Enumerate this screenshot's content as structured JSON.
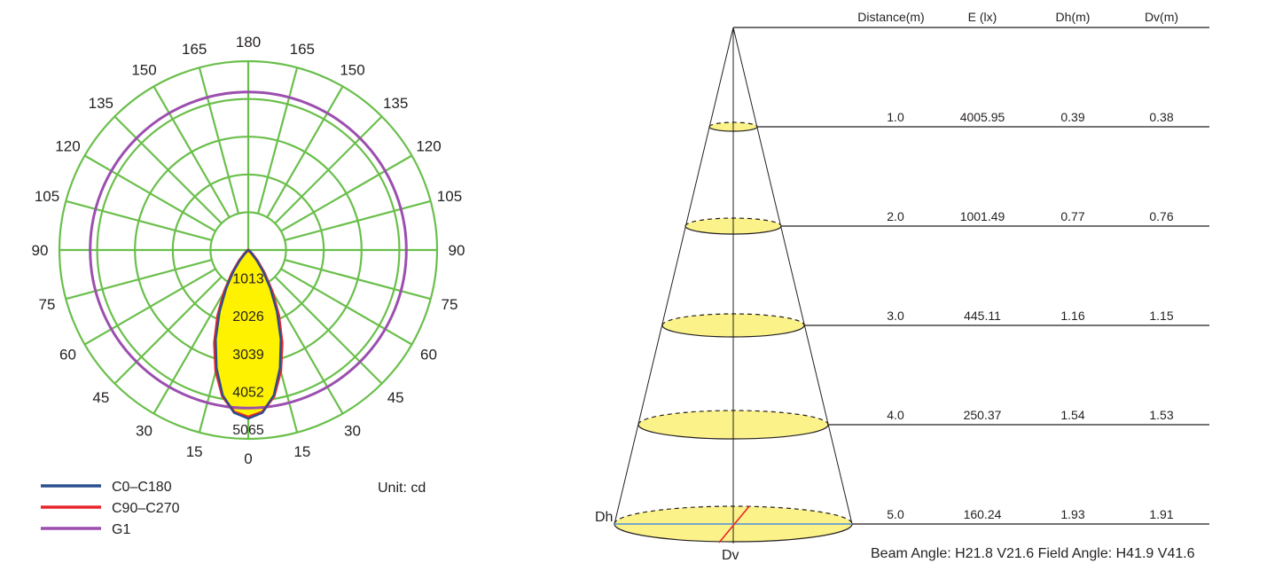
{
  "chart_data": [
    {
      "type": "polar",
      "unit_label": "Unit: cd",
      "angle_labels": [
        "180",
        "165",
        "150",
        "135",
        "120",
        "105",
        "90",
        "75",
        "60",
        "45",
        "30",
        "15",
        "0",
        "15",
        "30",
        "45",
        "60",
        "75",
        "90",
        "105",
        "120",
        "135",
        "150",
        "165"
      ],
      "ring_labels": [
        "1013",
        "2026",
        "3039",
        "4052",
        "5065"
      ],
      "rlim": [
        0,
        5065
      ],
      "grid": true,
      "legend_position": "bottom-left",
      "series": [
        {
          "name": "C0–C180",
          "color": "#2b4f8f",
          "points": [
            [
              0,
              4520
            ],
            [
              5,
              4380
            ],
            [
              10,
              3950
            ],
            [
              15,
              3280
            ],
            [
              20,
              2550
            ],
            [
              25,
              1820
            ],
            [
              30,
              1180
            ],
            [
              35,
              680
            ],
            [
              40,
              330
            ],
            [
              45,
              120
            ],
            [
              50,
              30
            ],
            [
              60,
              0
            ]
          ]
        },
        {
          "name": "C90–C270",
          "color": "#e8262b",
          "points": [
            [
              0,
              4480
            ],
            [
              5,
              4360
            ],
            [
              10,
              3980
            ],
            [
              15,
              3360
            ],
            [
              20,
              2650
            ],
            [
              25,
              1930
            ],
            [
              30,
              1280
            ],
            [
              35,
              760
            ],
            [
              40,
              380
            ],
            [
              45,
              150
            ],
            [
              50,
              40
            ],
            [
              60,
              0
            ]
          ]
        },
        {
          "name": "G1",
          "color": "#9b4fae",
          "uniform": 4240
        }
      ]
    },
    {
      "type": "table",
      "columns": [
        "Distance(m)",
        "E (lx)",
        "Dh(m)",
        "Dv(m)"
      ],
      "rows": [
        [
          "1.0",
          "4005.95",
          "0.39",
          "0.38"
        ],
        [
          "2.0",
          "1001.49",
          "0.77",
          "0.76"
        ],
        [
          "3.0",
          "445.11",
          "1.16",
          "1.15"
        ],
        [
          "4.0",
          "250.37",
          "1.54",
          "1.53"
        ],
        [
          "5.0",
          "160.24",
          "1.93",
          "1.91"
        ]
      ],
      "dh_label": "Dh",
      "dv_label": "Dv",
      "footer": "Beam Angle: H21.8 V21.6  Field Angle: H41.9 V41.6"
    }
  ],
  "colors": {
    "grid": "#6abf4b",
    "fill": "#fff200",
    "ellipse": "#fcf28a",
    "ink": "#231f20",
    "dh_line": "#4a90d9",
    "dv_line": "#e8262b"
  }
}
